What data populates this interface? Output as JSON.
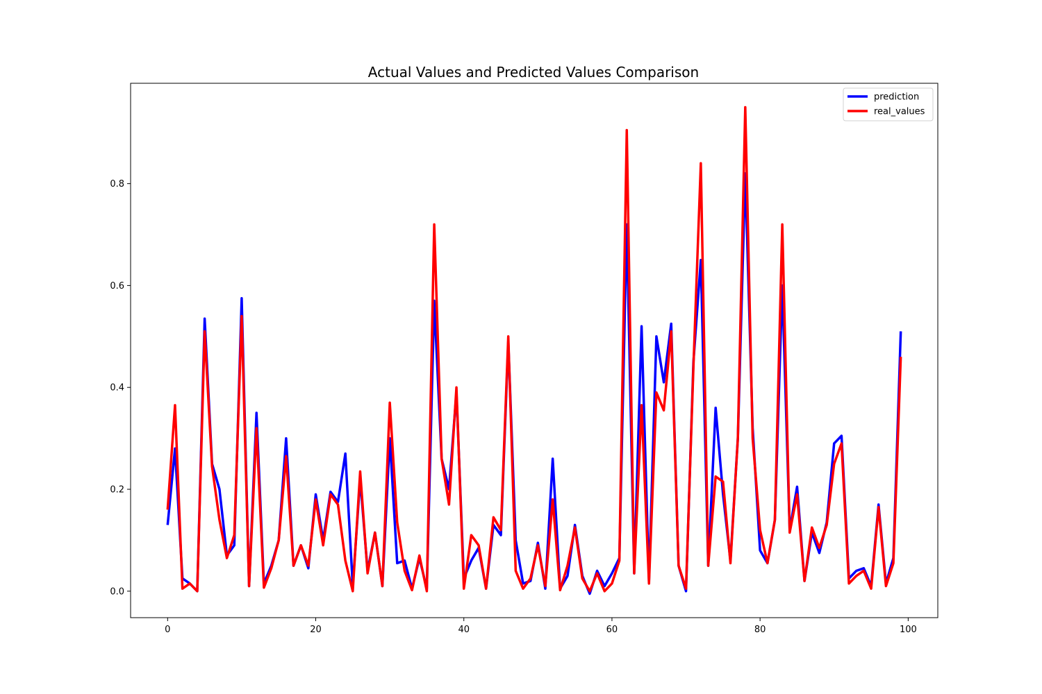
{
  "chart_data": {
    "type": "line",
    "title": "Actual Values and Predicted Values Comparison",
    "xlabel": "",
    "ylabel": "",
    "xlim": [
      -5,
      104
    ],
    "ylim": [
      -0.052,
      0.997
    ],
    "xticks": [
      0,
      20,
      40,
      60,
      80,
      100
    ],
    "yticks": [
      0.0,
      0.2,
      0.4,
      0.6,
      0.8
    ],
    "xtick_labels": [
      "0",
      "20",
      "40",
      "60",
      "80",
      "100"
    ],
    "ytick_labels": [
      "0.0",
      "0.2",
      "0.4",
      "0.6",
      "0.8"
    ],
    "grid": false,
    "legend_position": "top-right",
    "x": [
      0,
      1,
      2,
      3,
      4,
      5,
      6,
      7,
      8,
      9,
      10,
      11,
      12,
      13,
      14,
      15,
      16,
      17,
      18,
      19,
      20,
      21,
      22,
      23,
      24,
      25,
      26,
      27,
      28,
      29,
      30,
      31,
      32,
      33,
      34,
      35,
      36,
      37,
      38,
      39,
      40,
      41,
      42,
      43,
      44,
      45,
      46,
      47,
      48,
      49,
      50,
      51,
      52,
      53,
      54,
      55,
      56,
      57,
      58,
      59,
      60,
      61,
      62,
      63,
      64,
      65,
      66,
      67,
      68,
      69,
      70,
      71,
      72,
      73,
      74,
      75,
      76,
      77,
      78,
      79,
      80,
      81,
      82,
      83,
      84,
      85,
      86,
      87,
      88,
      89,
      90,
      91,
      92,
      93,
      94,
      95,
      96,
      97,
      98,
      99
    ],
    "series": [
      {
        "name": "prediction",
        "color": "#0000ff",
        "values": [
          0.13,
          0.28,
          0.025,
          0.015,
          0.0,
          0.535,
          0.25,
          0.2,
          0.07,
          0.09,
          0.575,
          0.01,
          0.35,
          0.015,
          0.05,
          0.1,
          0.3,
          0.05,
          0.09,
          0.045,
          0.19,
          0.1,
          0.195,
          0.175,
          0.27,
          0.01,
          0.22,
          0.04,
          0.115,
          0.01,
          0.3,
          0.055,
          0.06,
          0.005,
          0.065,
          0.005,
          0.57,
          0.26,
          0.2,
          0.39,
          0.025,
          0.06,
          0.085,
          0.005,
          0.13,
          0.11,
          0.49,
          0.1,
          0.015,
          0.02,
          0.095,
          0.005,
          0.26,
          0.005,
          0.03,
          0.13,
          0.03,
          -0.005,
          0.04,
          0.01,
          0.035,
          0.065,
          0.72,
          0.035,
          0.52,
          0.02,
          0.5,
          0.41,
          0.525,
          0.05,
          0.0,
          0.45,
          0.65,
          0.05,
          0.36,
          0.19,
          0.06,
          0.3,
          0.82,
          0.32,
          0.08,
          0.055,
          0.14,
          0.6,
          0.12,
          0.205,
          0.02,
          0.115,
          0.075,
          0.135,
          0.29,
          0.305,
          0.025,
          0.04,
          0.045,
          0.01,
          0.17,
          0.015,
          0.065,
          0.51
        ]
      },
      {
        "name": "real_values",
        "color": "#ff0000",
        "values": [
          0.16,
          0.365,
          0.005,
          0.015,
          0.0,
          0.51,
          0.245,
          0.14,
          0.065,
          0.11,
          0.54,
          0.01,
          0.32,
          0.007,
          0.045,
          0.1,
          0.265,
          0.05,
          0.09,
          0.05,
          0.18,
          0.09,
          0.19,
          0.17,
          0.06,
          0.0,
          0.235,
          0.035,
          0.115,
          0.01,
          0.37,
          0.135,
          0.04,
          0.002,
          0.07,
          0.0,
          0.72,
          0.26,
          0.17,
          0.4,
          0.005,
          0.11,
          0.09,
          0.005,
          0.145,
          0.12,
          0.5,
          0.04,
          0.005,
          0.025,
          0.09,
          0.01,
          0.18,
          0.002,
          0.05,
          0.125,
          0.025,
          0.0,
          0.035,
          0.0,
          0.015,
          0.06,
          0.905,
          0.035,
          0.365,
          0.015,
          0.39,
          0.355,
          0.51,
          0.05,
          0.005,
          0.44,
          0.84,
          0.05,
          0.225,
          0.215,
          0.055,
          0.3,
          0.95,
          0.3,
          0.12,
          0.055,
          0.14,
          0.72,
          0.115,
          0.19,
          0.02,
          0.125,
          0.085,
          0.13,
          0.25,
          0.29,
          0.015,
          0.03,
          0.04,
          0.005,
          0.165,
          0.01,
          0.055,
          0.46
        ]
      }
    ]
  }
}
